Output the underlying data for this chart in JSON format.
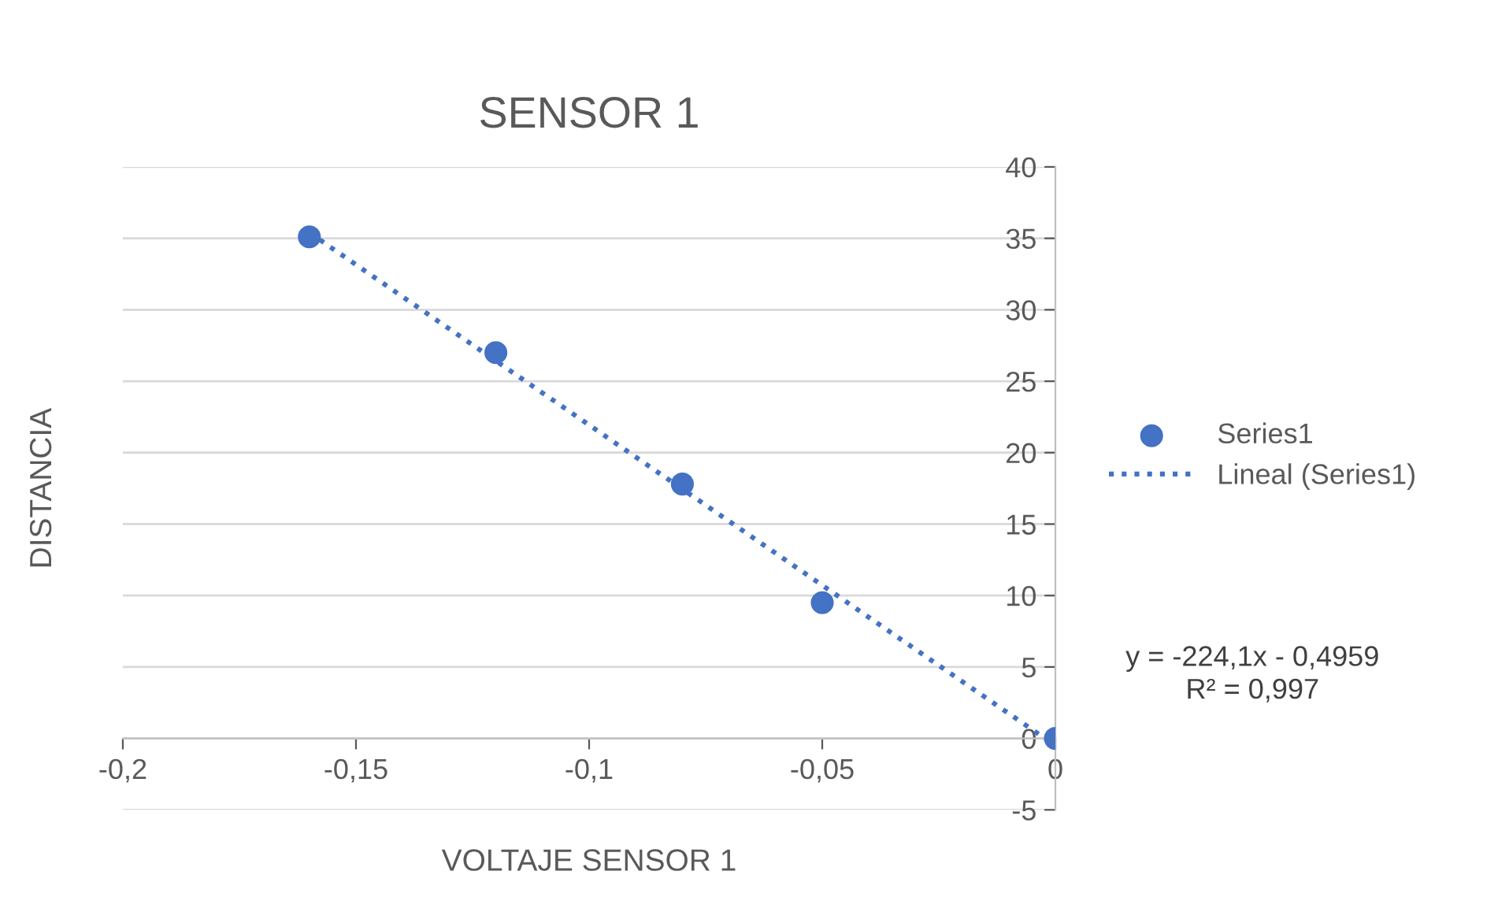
{
  "chart_data": {
    "type": "scatter",
    "title": "SENSOR 1",
    "xlabel": "VOLTAJE SENSOR 1",
    "ylabel": "DISTANCIA",
    "series": [
      {
        "name": "Series1",
        "color": "#4472c4",
        "marker": "circle",
        "x": [
          -0.16,
          -0.12,
          -0.08,
          -0.05,
          0
        ],
        "values": [
          35.1,
          27,
          17.8,
          9.5,
          0
        ]
      },
      {
        "name": "Lineal (Series1)",
        "type": "line",
        "color": "#4472c4",
        "line_style": "dotted",
        "marker": "none",
        "x": [
          -0.16,
          0
        ],
        "values": [
          35.4,
          -0.5
        ]
      }
    ],
    "xlim": [
      -0.2,
      0
    ],
    "xticks": [
      {
        "value": -0.2,
        "label": "-0,2"
      },
      {
        "value": -0.15,
        "label": "-0,15"
      },
      {
        "value": -0.1,
        "label": "-0,1"
      },
      {
        "value": -0.05,
        "label": "-0,05"
      },
      0
    ],
    "ylim": [
      -5,
      40
    ],
    "yticks": [
      -5,
      0,
      5,
      10,
      15,
      20,
      25,
      30,
      35,
      40
    ],
    "grid": "y",
    "legend": "right",
    "annotations": [
      "y = -224,1x - 0,4959\nR² = 0,997"
    ]
  }
}
